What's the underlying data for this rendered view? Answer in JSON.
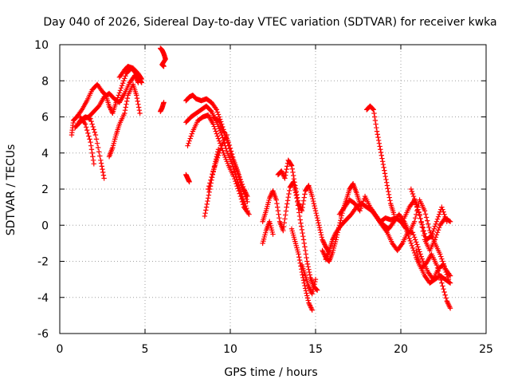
{
  "chart_data": {
    "type": "scatter",
    "title": "Day 040 of 2026, Sidereal Day-to-day VTEC variation (SDTVAR) for receiver kwka",
    "xlabel": "GPS time / hours",
    "ylabel": "SDTVAR / TECUs",
    "xlim": [
      0,
      25
    ],
    "ylim": [
      -6,
      10
    ],
    "x_ticks": [
      {
        "value": 0,
        "label": "0"
      },
      {
        "value": 5,
        "label": "5"
      },
      {
        "value": 10,
        "label": "10"
      },
      {
        "value": 15,
        "label": "15"
      },
      {
        "value": 20,
        "label": "20"
      },
      {
        "value": 25,
        "label": "25"
      }
    ],
    "y_ticks": [
      {
        "value": -6,
        "label": "-6"
      },
      {
        "value": -4,
        "label": "-4"
      },
      {
        "value": -2,
        "label": "-2"
      },
      {
        "value": 0,
        "label": "0"
      },
      {
        "value": 2,
        "label": "2"
      },
      {
        "value": 4,
        "label": "4"
      },
      {
        "value": 6,
        "label": "6"
      },
      {
        "value": 8,
        "label": "8"
      },
      {
        "value": 10,
        "label": "10"
      }
    ],
    "grid": true,
    "marker": "+",
    "marker_color": "#ff0000",
    "series": [
      {
        "name": "trace-1",
        "x": [
          0.7,
          0.8,
          1.0,
          1.3,
          1.6,
          1.9,
          2.2,
          2.5,
          2.7,
          2.9,
          3.1,
          3.3,
          3.6,
          3.9,
          4.2,
          4.4,
          4.6,
          4.8
        ],
        "y": [
          5.0,
          5.8,
          6.0,
          6.4,
          6.9,
          7.5,
          7.8,
          7.4,
          7.2,
          6.6,
          6.2,
          6.8,
          7.6,
          8.4,
          8.7,
          8.5,
          8.2,
          7.9
        ]
      },
      {
        "name": "trace-2",
        "x": [
          0.9,
          1.2,
          1.5,
          1.8,
          2.1,
          2.4,
          2.6
        ],
        "y": [
          5.4,
          5.8,
          6.0,
          5.9,
          5.0,
          3.6,
          2.6
        ]
      },
      {
        "name": "trace-3",
        "x": [
          1.0,
          1.4,
          1.7,
          2.0,
          2.3,
          2.6,
          2.9,
          3.2,
          3.5,
          3.8,
          4.1,
          4.4,
          4.6
        ],
        "y": [
          5.5,
          5.9,
          6.0,
          6.3,
          6.6,
          7.1,
          7.3,
          7.0,
          6.8,
          7.3,
          7.9,
          8.3,
          7.9
        ]
      },
      {
        "name": "trace-4",
        "x": [
          1.2,
          1.5,
          1.8,
          2.0
        ],
        "y": [
          6.0,
          5.6,
          4.6,
          3.4
        ]
      },
      {
        "name": "trace-5",
        "x": [
          2.9,
          3.1,
          3.3,
          3.5,
          3.8,
          4.0,
          4.3,
          4.5,
          4.7
        ],
        "y": [
          3.8,
          4.3,
          5.0,
          5.6,
          6.2,
          7.2,
          7.8,
          7.2,
          6.2
        ]
      },
      {
        "name": "trace-6",
        "x": [
          3.5,
          3.8,
          4.0,
          4.3,
          4.6,
          4.8
        ],
        "y": [
          8.2,
          8.6,
          8.8,
          8.7,
          8.4,
          8.1
        ]
      },
      {
        "name": "trace-7",
        "x": [
          5.9,
          6.0,
          6.1,
          6.2,
          6.0,
          6.1
        ],
        "y": [
          9.8,
          9.7,
          9.5,
          9.2,
          8.9,
          8.8
        ]
      },
      {
        "name": "trace-8",
        "x": [
          5.9,
          6.0,
          6.1
        ],
        "y": [
          6.3,
          6.5,
          6.8
        ]
      },
      {
        "name": "trace-9",
        "x": [
          7.4,
          7.5,
          7.6
        ],
        "y": [
          2.8,
          2.6,
          2.4
        ]
      },
      {
        "name": "trace-10",
        "x": [
          7.4,
          7.6,
          7.8,
          8.0,
          8.3,
          8.6,
          8.9,
          9.2,
          9.5,
          9.8,
          10.1,
          10.4,
          10.7,
          11.0
        ],
        "y": [
          6.9,
          7.1,
          7.2,
          7.0,
          6.9,
          7.0,
          6.8,
          6.4,
          5.6,
          4.7,
          3.8,
          3.0,
          2.1,
          1.3
        ]
      },
      {
        "name": "trace-11",
        "x": [
          7.4,
          7.7,
          8.0,
          8.3,
          8.6,
          8.9,
          9.2,
          9.5,
          9.8,
          10.1,
          10.4,
          10.7,
          11.0
        ],
        "y": [
          5.7,
          6.0,
          6.2,
          6.4,
          6.6,
          6.3,
          5.7,
          5.0,
          4.1,
          3.4,
          2.5,
          1.6,
          0.8
        ]
      },
      {
        "name": "trace-12",
        "x": [
          7.5,
          7.8,
          8.1,
          8.4,
          8.7,
          9.0,
          9.3,
          9.6,
          9.9,
          10.2,
          10.5,
          10.8,
          11.1
        ],
        "y": [
          4.4,
          5.2,
          5.8,
          6.0,
          6.1,
          5.6,
          4.8,
          4.0,
          3.3,
          2.7,
          1.9,
          1.0,
          0.6
        ]
      },
      {
        "name": "trace-13",
        "x": [
          8.5,
          8.7,
          8.9,
          9.1,
          9.3
        ],
        "y": [
          0.5,
          1.5,
          2.5,
          3.4,
          4.2
        ]
      },
      {
        "name": "trace-14",
        "x": [
          8.7,
          9.0,
          9.2,
          9.5,
          9.8
        ],
        "y": [
          2.0,
          3.0,
          3.6,
          4.4,
          5.0
        ]
      },
      {
        "name": "trace-15",
        "x": [
          9.0,
          9.3,
          9.6,
          9.9,
          10.2,
          10.5,
          10.8,
          11.0
        ],
        "y": [
          6.0,
          5.8,
          5.2,
          4.6,
          3.6,
          2.8,
          2.0,
          1.6
        ]
      },
      {
        "name": "trace-16",
        "x": [
          11.9,
          12.1,
          12.3,
          12.5,
          12.7,
          12.9,
          13.1,
          13.3,
          13.5,
          13.7,
          13.9,
          14.1,
          14.3,
          14.5,
          14.7,
          14.9,
          15.1
        ],
        "y": [
          0.2,
          0.8,
          1.5,
          1.9,
          1.4,
          0.2,
          -0.3,
          1.0,
          2.1,
          2.4,
          1.5,
          0.3,
          -0.8,
          -2.0,
          -2.9,
          -3.4,
          -3.6
        ]
      },
      {
        "name": "trace-17",
        "x": [
          11.9,
          12.1,
          12.3,
          12.5
        ],
        "y": [
          -1.0,
          -0.3,
          0.2,
          -0.5
        ]
      },
      {
        "name": "trace-18",
        "x": [
          12.8,
          13.0,
          13.2,
          13.4,
          13.6,
          13.8,
          14.0,
          14.2,
          14.4,
          14.6,
          14.8,
          15.0,
          15.2,
          15.4,
          15.6,
          15.8
        ],
        "y": [
          2.8,
          3.0,
          2.6,
          3.6,
          3.3,
          2.2,
          1.2,
          0.8,
          1.9,
          2.2,
          1.6,
          0.8,
          0.0,
          -0.8,
          -1.2,
          -1.5
        ]
      },
      {
        "name": "trace-19",
        "x": [
          13.6,
          13.8,
          14.0,
          14.2,
          14.4,
          14.6,
          14.8
        ],
        "y": [
          -0.2,
          -0.9,
          -1.6,
          -2.6,
          -3.5,
          -4.3,
          -4.7
        ]
      },
      {
        "name": "trace-20",
        "x": [
          14.2,
          14.4,
          14.6,
          14.8,
          15.0
        ],
        "y": [
          -2.2,
          -2.8,
          -3.4,
          -3.8,
          -3.0
        ]
      },
      {
        "name": "trace-21",
        "x": [
          15.4,
          15.6,
          15.8,
          16.0,
          16.2,
          16.4,
          16.6,
          16.8,
          17.0,
          17.2,
          17.4,
          17.6
        ],
        "y": [
          -1.4,
          -1.8,
          -2.0,
          -1.5,
          -0.8,
          0.0,
          0.8,
          1.4,
          2.0,
          2.3,
          1.8,
          1.2
        ]
      },
      {
        "name": "trace-22",
        "x": [
          15.6,
          15.8,
          16.0,
          16.2,
          16.5,
          16.8,
          17.1,
          17.4,
          17.7,
          18.0,
          18.3,
          18.6,
          18.9,
          19.2,
          19.5,
          19.8,
          20.1,
          20.4,
          20.7,
          21.0,
          21.3,
          21.6,
          21.9,
          22.2,
          22.5,
          22.8
        ],
        "y": [
          -1.9,
          -1.4,
          -0.8,
          -0.4,
          0.0,
          0.3,
          0.6,
          1.0,
          1.2,
          1.0,
          0.8,
          0.4,
          0.0,
          -0.4,
          -1.0,
          -1.4,
          -1.0,
          -0.4,
          -0.4,
          -1.2,
          -2.0,
          -2.6,
          -3.0,
          -2.4,
          -2.2,
          -3.0
        ]
      },
      {
        "name": "trace-23",
        "x": [
          16.4,
          16.7,
          17.0,
          17.3,
          17.6,
          17.9,
          18.2,
          18.5,
          18.8,
          19.1,
          19.4,
          19.7,
          20.0,
          20.3,
          20.6,
          20.9,
          21.2,
          21.5,
          21.8,
          22.1,
          22.4,
          22.7,
          22.9
        ],
        "y": [
          0.6,
          1.0,
          1.4,
          1.2,
          0.8,
          1.6,
          1.0,
          0.6,
          0.2,
          0.4,
          0.3,
          0.4,
          0.2,
          -0.2,
          -1.0,
          -1.8,
          -2.4,
          -2.1,
          -1.6,
          -2.2,
          -3.2,
          -4.2,
          -4.6
        ]
      },
      {
        "name": "trace-24",
        "x": [
          18.0,
          18.2,
          18.4,
          18.6,
          18.8,
          19.0,
          19.2,
          19.4,
          19.6
        ],
        "y": [
          6.4,
          6.6,
          6.4,
          5.2,
          4.2,
          3.2,
          2.2,
          1.2,
          0.6
        ]
      },
      {
        "name": "trace-25",
        "x": [
          18.8,
          19.0,
          19.3,
          19.6,
          19.9,
          20.2,
          20.5,
          20.8,
          21.1,
          21.4,
          21.7,
          22.0,
          22.3,
          22.6,
          22.9
        ],
        "y": [
          0.2,
          0.0,
          -0.2,
          0.2,
          0.6,
          0.2,
          -0.4,
          0.2,
          1.4,
          0.8,
          -0.3,
          -1.0,
          -1.6,
          -2.4,
          -2.8
        ]
      },
      {
        "name": "trace-26",
        "x": [
          20.2,
          20.5,
          20.8,
          21.1,
          21.4,
          21.7,
          22.0,
          22.3,
          22.6,
          22.9
        ],
        "y": [
          0.4,
          1.0,
          1.4,
          0.6,
          -0.8,
          -1.4,
          -0.8,
          0.0,
          0.4,
          0.2
        ]
      },
      {
        "name": "trace-27",
        "x": [
          20.6,
          20.9,
          21.2,
          21.5,
          21.8,
          22.1,
          22.4,
          22.7
        ],
        "y": [
          2.0,
          1.2,
          0.2,
          -0.8,
          -0.6,
          0.2,
          1.0,
          0.2
        ]
      },
      {
        "name": "trace-28",
        "x": [
          20.9,
          21.1,
          21.4,
          21.7,
          22.0,
          22.3,
          22.6,
          22.9
        ],
        "y": [
          -1.4,
          -2.2,
          -2.8,
          -3.2,
          -3.0,
          -2.8,
          -3.0,
          -3.2
        ]
      }
    ]
  }
}
